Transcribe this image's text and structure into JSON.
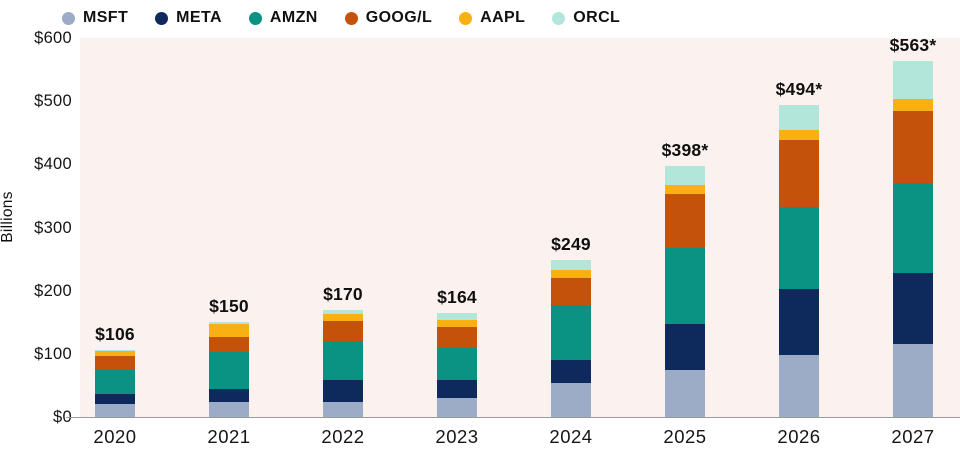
{
  "chart_data": {
    "type": "bar",
    "stacked": true,
    "ylabel": "Billions",
    "ylim": [
      0,
      600
    ],
    "y_ticks": [
      "$600",
      "$500",
      "$400",
      "$300",
      "$200",
      "$100",
      "$0"
    ],
    "grid": false,
    "legend_position": "top",
    "categories": [
      "2020",
      "2021",
      "2022",
      "2023",
      "2024",
      "2025",
      "2026",
      "2027"
    ],
    "totals": [
      106,
      150,
      170,
      164,
      249,
      398,
      494,
      563
    ],
    "total_labels": [
      "$106",
      "$150",
      "$170",
      "$164",
      "$249",
      "$398*",
      "$494*",
      "$563*"
    ],
    "series": [
      {
        "name": "MSFT",
        "color": "#9CACC6",
        "values": [
          20,
          24,
          23,
          30,
          54,
          75,
          98,
          116
        ]
      },
      {
        "name": "META",
        "color": "#0E2A5C",
        "values": [
          16,
          20,
          35,
          29,
          37,
          72,
          104,
          112
        ]
      },
      {
        "name": "AMZN",
        "color": "#0A9383",
        "values": [
          39,
          59,
          62,
          51,
          87,
          120,
          130,
          143
        ]
      },
      {
        "name": "GOOG/L",
        "color": "#C5520A",
        "values": [
          22,
          24,
          32,
          33,
          42,
          86,
          106,
          114
        ]
      },
      {
        "name": "AAPL",
        "color": "#F9B013",
        "values": [
          7,
          20,
          11,
          11,
          13,
          14,
          17,
          18
        ]
      },
      {
        "name": "ORCL",
        "color": "#B3E6DB",
        "values": [
          2,
          3,
          7,
          10,
          16,
          31,
          39,
          60
        ]
      }
    ]
  },
  "colors": {
    "page_bg": "#FFFFFF",
    "plot_bg": "#FBF1EF",
    "axis_line": "#9B9B9B",
    "text": "#111111"
  }
}
